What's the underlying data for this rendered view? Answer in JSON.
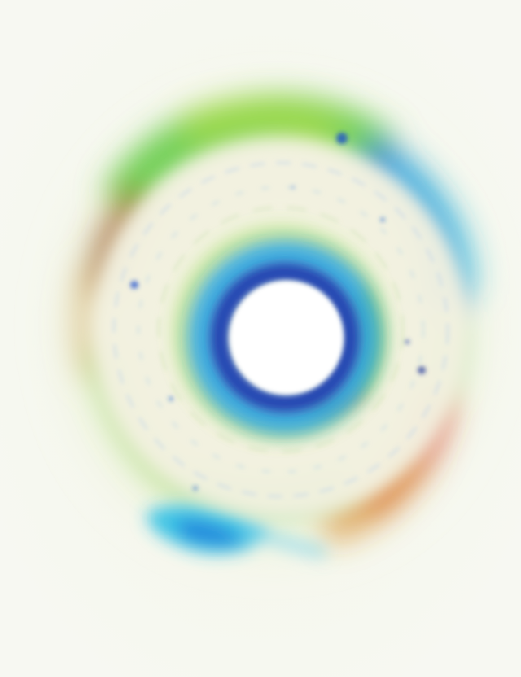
{
  "image": {
    "subject": "",
    "palette": {
      "background": "#f7f8f2",
      "core": "#ffffff",
      "inner_ring": "#1a3fb0",
      "inner_glow": "#1fa0e0",
      "green": "#58c83a",
      "lime": "#a8dc3c",
      "cyan": "#2cc0e6",
      "blue": "#1e6fd8",
      "orange": "#d9892a",
      "red": "#d8402c",
      "brown": "#9a5a2a",
      "cream": "#f2f1e0"
    }
  }
}
